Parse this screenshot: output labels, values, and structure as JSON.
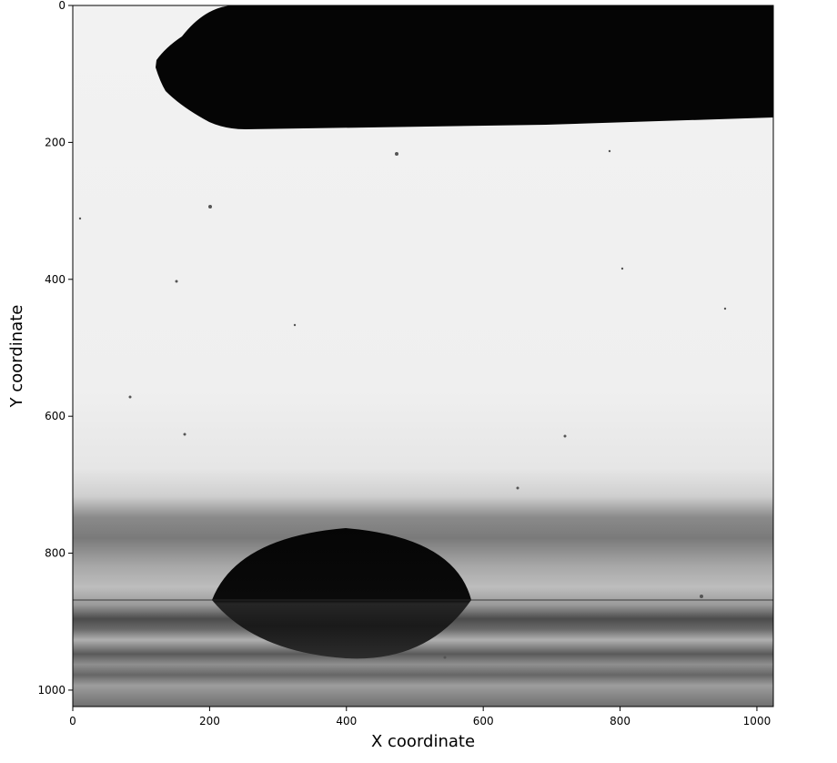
{
  "chart_data": {
    "type": "image",
    "xlabel": "X coordinate",
    "ylabel": "Y coordinate",
    "xlim": [
      0,
      1024
    ],
    "ylim": [
      1024,
      0
    ],
    "xticks": [
      0,
      200,
      400,
      600,
      800,
      1000
    ],
    "yticks": [
      0,
      200,
      400,
      600,
      800,
      1000
    ],
    "xtick_labels": [
      "0",
      "200",
      "400",
      "600",
      "800",
      "1000"
    ],
    "ytick_labels": [
      "0",
      "200",
      "400",
      "600",
      "800",
      "1000"
    ],
    "grid": false,
    "colormap": "grayscale"
  }
}
